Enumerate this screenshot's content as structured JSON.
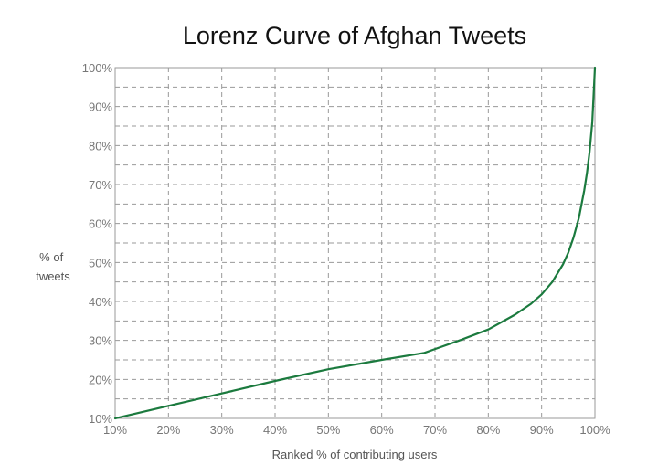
{
  "chart_data": {
    "type": "line",
    "title": "Lorenz Curve of Afghan Tweets",
    "xlabel": "Ranked % of contributing users",
    "ylabel": [
      "% of",
      "tweets"
    ],
    "xlim": [
      10,
      100
    ],
    "ylim": [
      10,
      100
    ],
    "x_ticks": [
      "10%",
      "20%",
      "30%",
      "40%",
      "50%",
      "60%",
      "70%",
      "80%",
      "90%",
      "100%"
    ],
    "y_ticks": [
      "10%",
      "20%",
      "30%",
      "40%",
      "50%",
      "60%",
      "70%",
      "80%",
      "90%",
      "100%"
    ],
    "grid": true,
    "color": "#1b7a3e",
    "series": [
      {
        "x": [
          10,
          20,
          30,
          40,
          50,
          60,
          68,
          70,
          75,
          80,
          85,
          88,
          90,
          92,
          94,
          95,
          96,
          97,
          98,
          98.5,
          99,
          99.5,
          100
        ],
        "y": [
          10,
          13.2,
          16.4,
          19.6,
          22.6,
          25.0,
          26.8,
          27.8,
          30.2,
          32.8,
          36.6,
          39.4,
          41.8,
          45.0,
          49.5,
          52.5,
          56.5,
          61.5,
          68.5,
          73.0,
          78.5,
          86.0,
          100
        ]
      }
    ]
  }
}
